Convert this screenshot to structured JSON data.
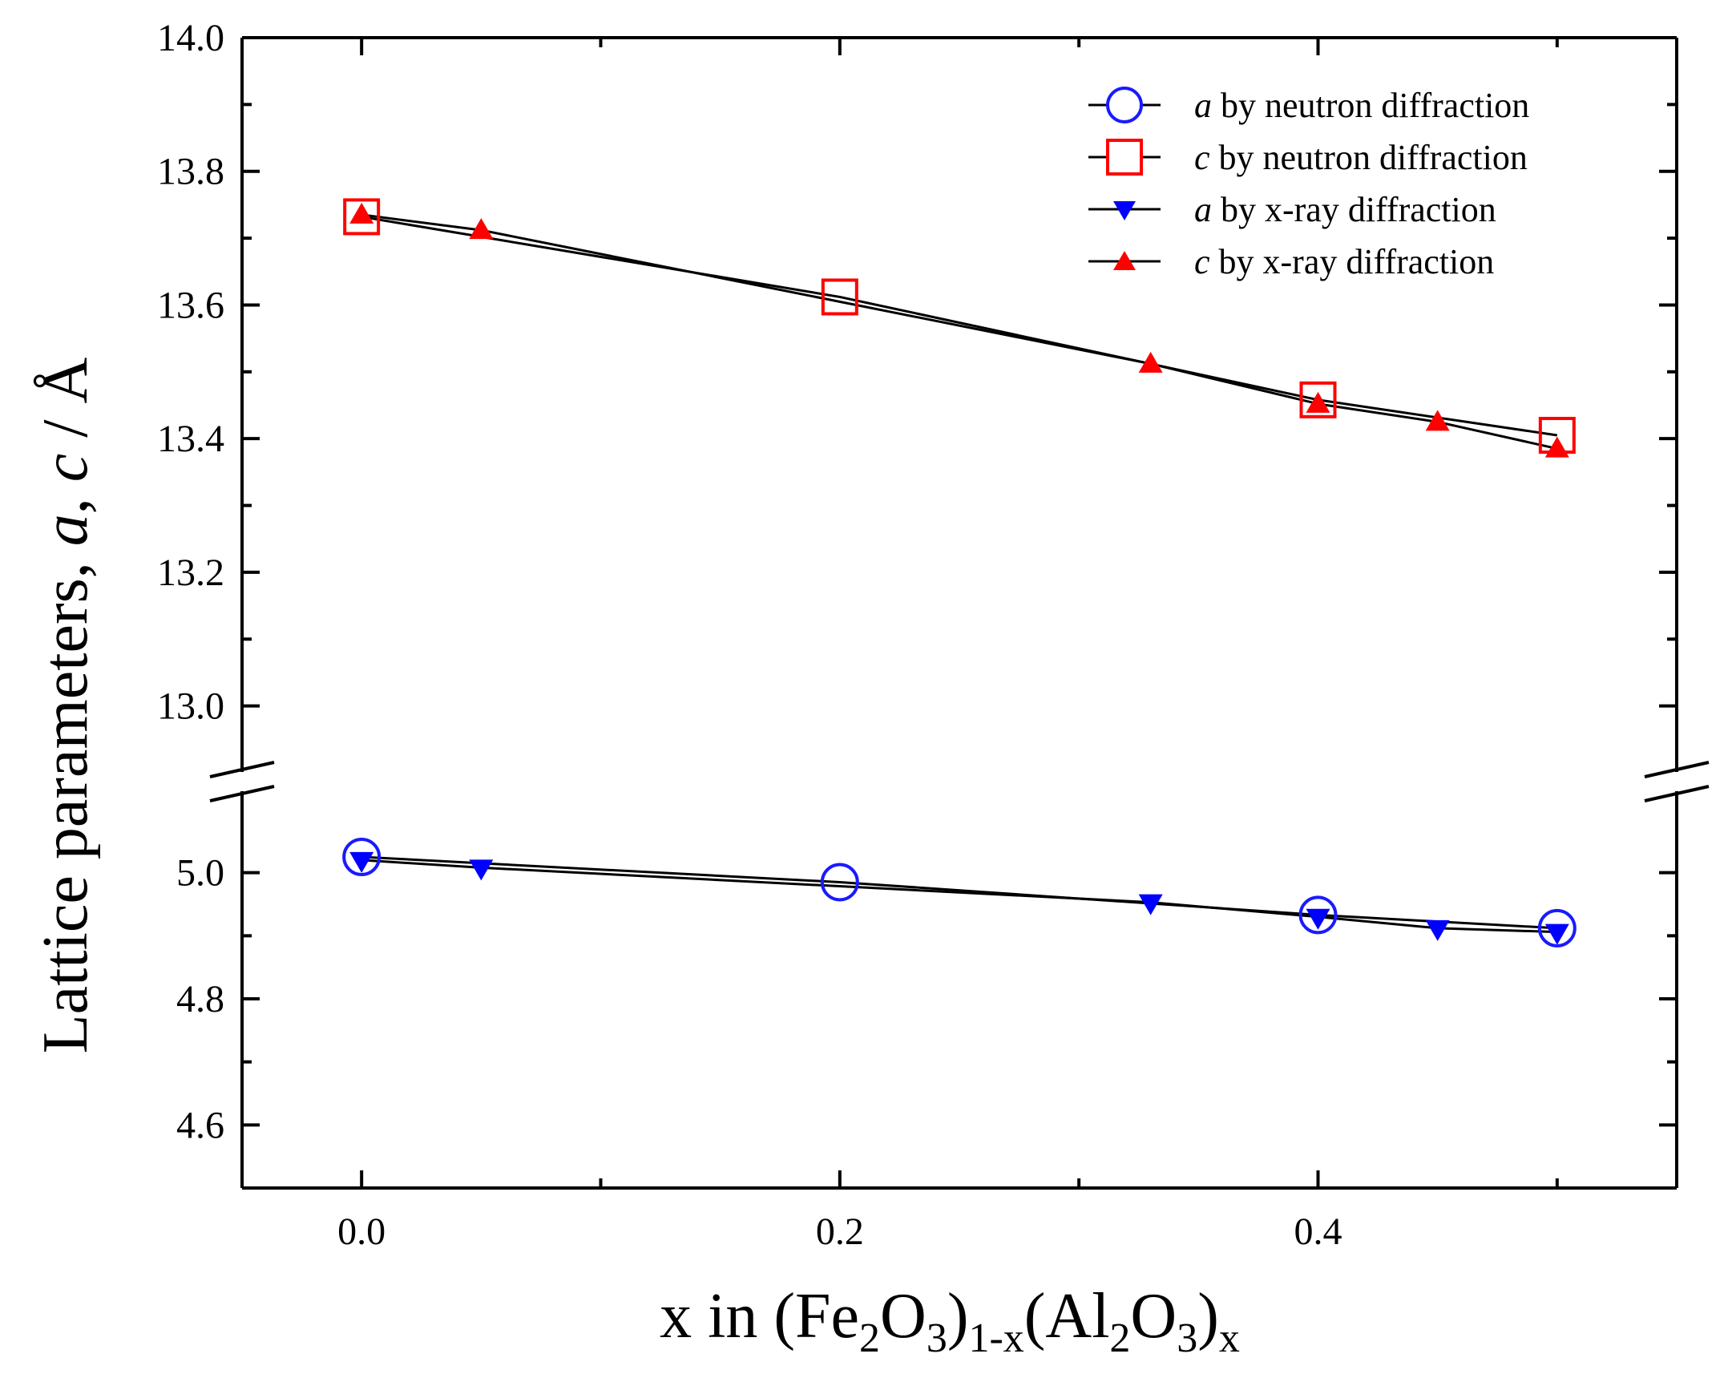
{
  "chart_data": {
    "type": "line",
    "xlabel": {
      "prefix": "x in (Fe",
      "sub1": "2",
      "mid1": "O",
      "sub2": "3",
      "mid2": ")",
      "sub3": "1-x",
      "mid3": "(Al",
      "sub4": "2",
      "mid4": "O",
      "sub5": "3",
      "mid5": ")",
      "sub6": "x"
    },
    "ylabel": {
      "prefix": "Lattice parameters, ",
      "a": "a",
      "comma": ", ",
      "c": "c",
      "unit": " / Å"
    },
    "xlim": [
      -0.05,
      0.55
    ],
    "x_ticks": [
      {
        "value": 0.0,
        "label": "0.0"
      },
      {
        "value": 0.2,
        "label": "0.2"
      },
      {
        "value": 0.4,
        "label": "0.4"
      }
    ],
    "y_break": true,
    "y_upper": {
      "ylim": [
        12.9,
        14.0
      ],
      "ticks": [
        {
          "value": 13.0,
          "label": "13.0"
        },
        {
          "value": 13.2,
          "label": "13.2"
        },
        {
          "value": 13.4,
          "label": "13.4"
        },
        {
          "value": 13.6,
          "label": "13.6"
        },
        {
          "value": 13.8,
          "label": "13.8"
        },
        {
          "value": 14.0,
          "label": "14.0"
        }
      ]
    },
    "y_lower": {
      "ylim": [
        4.5,
        5.1
      ],
      "ticks": [
        {
          "value": 4.6,
          "label": "4.6"
        },
        {
          "value": 4.8,
          "label": "4.8"
        },
        {
          "value": 5.0,
          "label": "5.0"
        }
      ]
    },
    "legend_position": "top-right",
    "series": [
      {
        "name": "a by neutron diffraction",
        "param": "a",
        "method": " by neutron diffraction",
        "marker": "circle",
        "color": "#1a1aff",
        "panel": "lower",
        "x": [
          0.0,
          0.2,
          0.4,
          0.5
        ],
        "y": [
          5.025,
          4.985,
          4.933,
          4.912
        ]
      },
      {
        "name": "c by neutron diffraction",
        "param": "c",
        "method": " by neutron diffraction",
        "marker": "square",
        "color": "#ff0000",
        "panel": "upper",
        "x": [
          0.0,
          0.2,
          0.4,
          0.5
        ],
        "y": [
          13.732,
          13.612,
          13.458,
          13.405
        ]
      },
      {
        "name": "a by x-ray diffraction",
        "param": "a",
        "method": " by x-ray diffraction",
        "marker": "triangle-down",
        "color": "#0000ff",
        "panel": "lower",
        "x": [
          0.0,
          0.05,
          0.33,
          0.4,
          0.45,
          0.5
        ],
        "y": [
          5.02,
          5.008,
          4.953,
          4.93,
          4.912,
          4.906
        ]
      },
      {
        "name": "c by x-ray diffraction",
        "param": "c",
        "method": " by x-ray diffraction",
        "marker": "triangle-up",
        "color": "#ff0000",
        "panel": "upper",
        "x": [
          0.0,
          0.05,
          0.33,
          0.4,
          0.45,
          0.5
        ],
        "y": [
          13.735,
          13.712,
          13.512,
          13.452,
          13.425,
          13.385
        ]
      }
    ]
  }
}
